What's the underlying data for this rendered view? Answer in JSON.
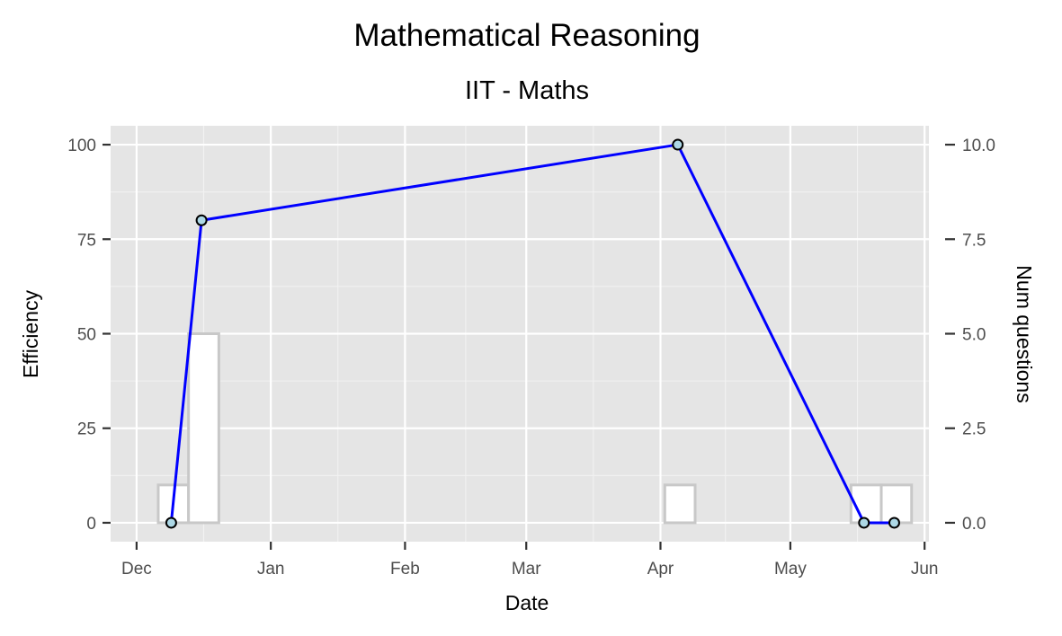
{
  "chart_data": {
    "type": "line",
    "title": "Mathematical Reasoning",
    "subtitle": "IIT - Maths",
    "xlabel": "Date",
    "ylabel": "Efficiency",
    "y2label": "Num questions",
    "x_tick_labels": [
      "Dec",
      "Jan",
      "Feb",
      "Mar",
      "Apr",
      "May",
      "Jun"
    ],
    "x_tick_dates": [
      "2016-12-01",
      "2017-01-01",
      "2017-02-01",
      "2017-03-01",
      "2017-04-01",
      "2017-05-01",
      "2017-06-01"
    ],
    "xlim": [
      "2016-11-25",
      "2017-06-02"
    ],
    "ylim": [
      -5,
      105
    ],
    "y_ticks": [
      0,
      25,
      50,
      75,
      100
    ],
    "y_tick_labels": [
      "0",
      "25",
      "50",
      "75",
      "100"
    ],
    "y2lim": [
      -0.5,
      10.5
    ],
    "y2_ticks": [
      0,
      2.5,
      5,
      7.5,
      10
    ],
    "y2_tick_labels": [
      "0.0",
      "2.5",
      "5.0",
      "7.5",
      "10.0"
    ],
    "grid": true,
    "series": [
      {
        "type": "line",
        "color": "#0000ff",
        "marker_fill": "#add8e6",
        "points": [
          {
            "date": "2016-12-09",
            "value": 0
          },
          {
            "date": "2016-12-16",
            "value": 80
          },
          {
            "date": "2017-04-05",
            "value": 100
          },
          {
            "date": "2017-05-18",
            "value": 0
          },
          {
            "date": "2017-05-25",
            "value": 0
          }
        ]
      },
      {
        "type": "bar",
        "axis": "secondary",
        "fill": "#ffffff",
        "stroke": "#c8c8c8",
        "bars": [
          {
            "start": "2016-12-06",
            "end": "2016-12-13",
            "count": 1
          },
          {
            "start": "2016-12-13",
            "end": "2016-12-20",
            "count": 5
          },
          {
            "start": "2017-04-02",
            "end": "2017-04-09",
            "count": 1
          },
          {
            "start": "2017-05-15",
            "end": "2017-05-22",
            "count": 1
          },
          {
            "start": "2017-05-22",
            "end": "2017-05-29",
            "count": 1
          }
        ]
      }
    ]
  }
}
